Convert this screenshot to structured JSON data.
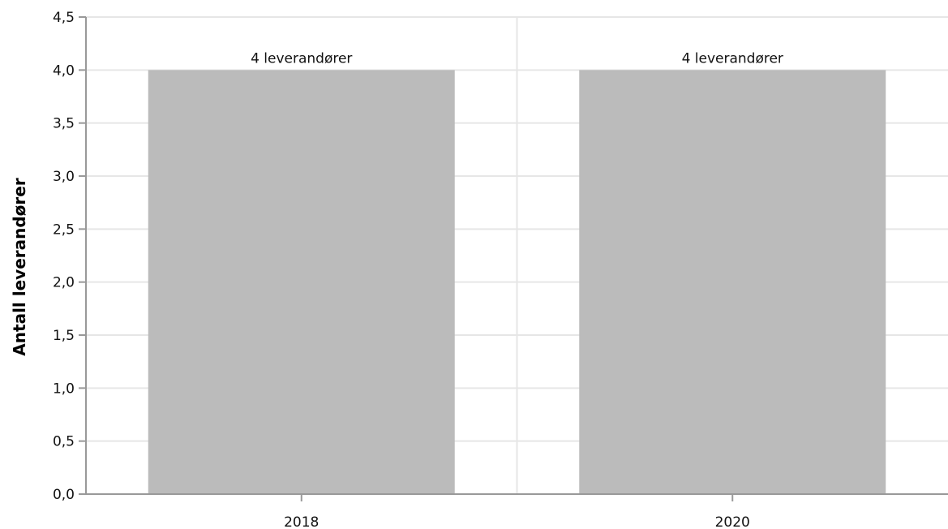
{
  "chart_data": {
    "type": "bar",
    "categories": [
      "2018",
      "2020"
    ],
    "values": [
      4,
      4
    ],
    "data_labels": [
      "4 leverandører",
      "4 leverandører"
    ],
    "ylabel": "Antall leverandører",
    "xlabel": "",
    "ylim": [
      0,
      4.5
    ],
    "yticks": [
      "0,0",
      "0,5",
      "1,0",
      "1,5",
      "2,0",
      "2,5",
      "3,0",
      "3,5",
      "4,0",
      "4,5"
    ],
    "grid": true,
    "legend": "none",
    "colors": {
      "bar": "#bbbbbb",
      "grid": "#e6e6e6",
      "axis": "#999999"
    }
  }
}
